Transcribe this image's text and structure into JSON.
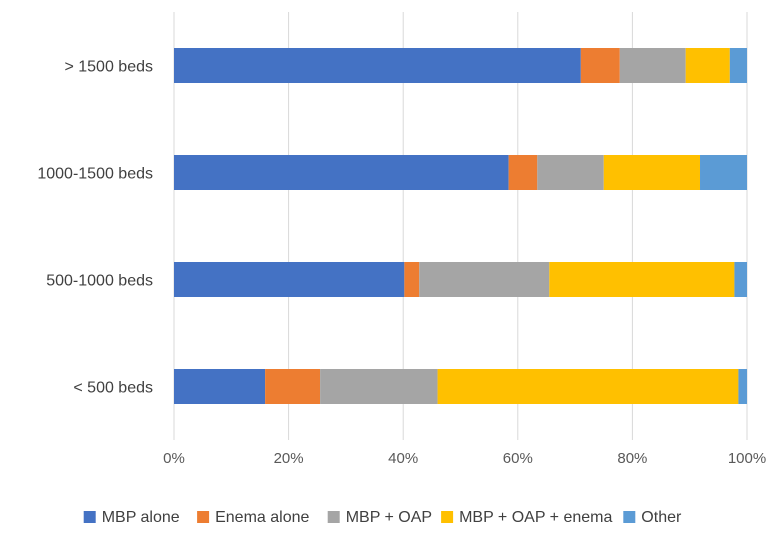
{
  "chart_data": {
    "type": "bar",
    "orientation": "horizontal",
    "stacked": true,
    "normalized": true,
    "categories": [
      "> 1500 beds",
      "1000-1500 beds",
      "500-1000 beds",
      "< 500 beds"
    ],
    "series": [
      {
        "name": "MBP alone",
        "color": "#4472C4",
        "values": [
          71,
          58.4,
          40.2,
          15.9
        ]
      },
      {
        "name": "Enema alone",
        "color": "#ED7D31",
        "values": [
          6.8,
          5,
          2.6,
          9.6
        ]
      },
      {
        "name": "MBP + OAP",
        "color": "#A5A5A5",
        "values": [
          11.5,
          11.6,
          22.7,
          20.5
        ]
      },
      {
        "name": "MBP + OAP + enema",
        "color": "#FFC000",
        "values": [
          7.7,
          16.8,
          32.3,
          52.5
        ]
      },
      {
        "name": "Other",
        "color": "#5B9BD5",
        "values": [
          3,
          8.2,
          2.2,
          1.5
        ]
      }
    ],
    "x_ticks": [
      "0%",
      "20%",
      "40%",
      "60%",
      "80%",
      "100%"
    ],
    "xlim": [
      0,
      100
    ],
    "grid": "vertical",
    "legend_position": "bottom"
  }
}
